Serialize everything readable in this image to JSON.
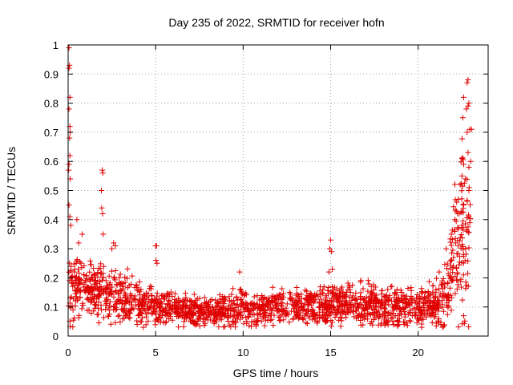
{
  "chart_data": {
    "type": "scatter",
    "title": "Day 235 of 2022, SRMTID for receiver hofn",
    "xlabel": "GPS time / hours",
    "ylabel": "SRMTID / TECUs",
    "xlim": [
      0,
      24
    ],
    "ylim": [
      0,
      1
    ],
    "xticks": [
      0,
      5,
      10,
      15,
      20
    ],
    "yticks": [
      0,
      0.1,
      0.2,
      0.3,
      0.4,
      0.5,
      0.6,
      0.7,
      0.8,
      0.9,
      1
    ],
    "grid": true,
    "marker": "+",
    "color": "#e00000",
    "series": [
      {
        "name": "SRMTID",
        "envelope": [
          {
            "x": 0.0,
            "typical": 0.13,
            "spread": 0.12
          },
          {
            "x": 0.5,
            "typical": 0.18,
            "spread": 0.1
          },
          {
            "x": 1.0,
            "typical": 0.17,
            "spread": 0.09
          },
          {
            "x": 1.5,
            "typical": 0.16,
            "spread": 0.09
          },
          {
            "x": 2.0,
            "typical": 0.15,
            "spread": 0.09
          },
          {
            "x": 2.5,
            "typical": 0.15,
            "spread": 0.09
          },
          {
            "x": 3.0,
            "typical": 0.13,
            "spread": 0.08
          },
          {
            "x": 4.0,
            "typical": 0.11,
            "spread": 0.06
          },
          {
            "x": 5.0,
            "typical": 0.1,
            "spread": 0.06
          },
          {
            "x": 6.0,
            "typical": 0.09,
            "spread": 0.05
          },
          {
            "x": 8.0,
            "typical": 0.085,
            "spread": 0.05
          },
          {
            "x": 10.0,
            "typical": 0.09,
            "spread": 0.05
          },
          {
            "x": 12.0,
            "typical": 0.1,
            "spread": 0.05
          },
          {
            "x": 14.0,
            "typical": 0.1,
            "spread": 0.05
          },
          {
            "x": 15.0,
            "typical": 0.1,
            "spread": 0.06
          },
          {
            "x": 16.0,
            "typical": 0.11,
            "spread": 0.06
          },
          {
            "x": 18.0,
            "typical": 0.1,
            "spread": 0.06
          },
          {
            "x": 20.0,
            "typical": 0.1,
            "spread": 0.06
          },
          {
            "x": 21.0,
            "typical": 0.1,
            "spread": 0.06
          },
          {
            "x": 21.5,
            "typical": 0.14,
            "spread": 0.1
          },
          {
            "x": 22.0,
            "typical": 0.25,
            "spread": 0.18
          },
          {
            "x": 22.5,
            "typical": 0.35,
            "spread": 0.25
          },
          {
            "x": 23.0,
            "typical": 0.3,
            "spread": 0.25
          }
        ],
        "x_range": [
          0.0,
          23.0
        ],
        "point_count": 2000,
        "outliers": [
          {
            "x": 0.05,
            "y": 0.99
          },
          {
            "x": 0.08,
            "y": 0.93
          },
          {
            "x": 0.05,
            "y": 0.92
          },
          {
            "x": 0.1,
            "y": 0.82
          },
          {
            "x": 0.05,
            "y": 0.78
          },
          {
            "x": 0.1,
            "y": 0.72
          },
          {
            "x": 0.12,
            "y": 0.7
          },
          {
            "x": 0.08,
            "y": 0.68
          },
          {
            "x": 0.1,
            "y": 0.62
          },
          {
            "x": 0.05,
            "y": 0.59
          },
          {
            "x": 0.03,
            "y": 0.57
          },
          {
            "x": 0.12,
            "y": 0.54
          },
          {
            "x": 0.05,
            "y": 0.45
          },
          {
            "x": 0.1,
            "y": 0.41
          },
          {
            "x": 0.15,
            "y": 0.38
          },
          {
            "x": 0.5,
            "y": 0.4
          },
          {
            "x": 0.8,
            "y": 0.35
          },
          {
            "x": 0.6,
            "y": 0.32
          },
          {
            "x": 1.95,
            "y": 0.57
          },
          {
            "x": 1.98,
            "y": 0.56
          },
          {
            "x": 1.9,
            "y": 0.5
          },
          {
            "x": 1.92,
            "y": 0.44
          },
          {
            "x": 1.97,
            "y": 0.42
          },
          {
            "x": 2.0,
            "y": 0.35
          },
          {
            "x": 2.6,
            "y": 0.32
          },
          {
            "x": 2.7,
            "y": 0.31
          },
          {
            "x": 2.5,
            "y": 0.3
          },
          {
            "x": 5.0,
            "y": 0.31
          },
          {
            "x": 5.05,
            "y": 0.31
          },
          {
            "x": 5.02,
            "y": 0.26
          },
          {
            "x": 5.08,
            "y": 0.25
          },
          {
            "x": 15.0,
            "y": 0.33
          },
          {
            "x": 14.95,
            "y": 0.3
          },
          {
            "x": 15.05,
            "y": 0.29
          },
          {
            "x": 15.1,
            "y": 0.23
          },
          {
            "x": 14.9,
            "y": 0.22
          },
          {
            "x": 9.8,
            "y": 0.22
          },
          {
            "x": 21.2,
            "y": 0.22
          },
          {
            "x": 21.6,
            "y": 0.3
          },
          {
            "x": 22.85,
            "y": 0.88
          },
          {
            "x": 22.8,
            "y": 0.87
          },
          {
            "x": 22.6,
            "y": 0.82
          },
          {
            "x": 22.9,
            "y": 0.8
          },
          {
            "x": 22.85,
            "y": 0.79
          },
          {
            "x": 22.75,
            "y": 0.78
          },
          {
            "x": 22.55,
            "y": 0.75
          },
          {
            "x": 22.95,
            "y": 0.71
          },
          {
            "x": 23.05,
            "y": 0.71
          },
          {
            "x": 22.8,
            "y": 0.7
          },
          {
            "x": 22.85,
            "y": 0.63
          },
          {
            "x": 22.5,
            "y": 0.61
          },
          {
            "x": 23.0,
            "y": 0.6
          },
          {
            "x": 22.6,
            "y": 0.59
          },
          {
            "x": 22.9,
            "y": 0.58
          },
          {
            "x": 22.5,
            "y": 0.55
          },
          {
            "x": 22.7,
            "y": 0.54
          },
          {
            "x": 22.4,
            "y": 0.52
          },
          {
            "x": 22.9,
            "y": 0.5
          },
          {
            "x": 22.3,
            "y": 0.47
          },
          {
            "x": 22.2,
            "y": 0.46
          },
          {
            "x": 22.6,
            "y": 0.45
          },
          {
            "x": 22.35,
            "y": 0.42
          },
          {
            "x": 22.1,
            "y": 0.4
          },
          {
            "x": 22.5,
            "y": 0.38
          },
          {
            "x": 22.8,
            "y": 0.36
          },
          {
            "x": 21.9,
            "y": 0.35
          },
          {
            "x": 22.6,
            "y": 0.07
          },
          {
            "x": 20.2,
            "y": 0.03
          },
          {
            "x": 4.3,
            "y": 0.03
          }
        ]
      }
    ]
  }
}
